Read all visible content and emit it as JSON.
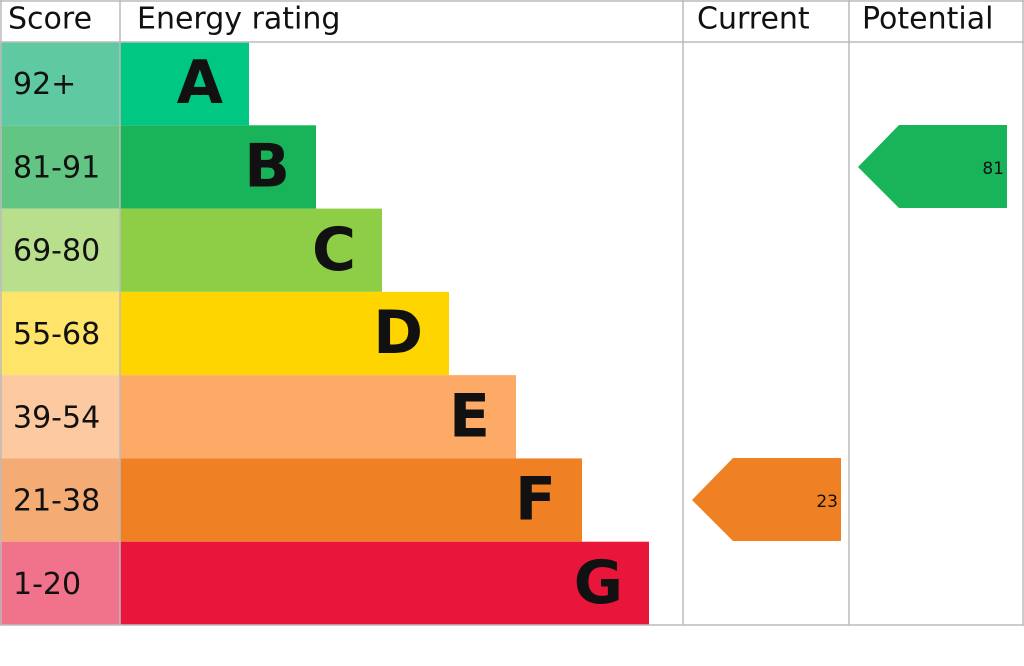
{
  "header": {
    "score": "Score",
    "rating": "Energy rating",
    "current": "Current",
    "potential": "Potential"
  },
  "rows": [
    {
      "score": "92+",
      "letter": "A"
    },
    {
      "score": "81-91",
      "letter": "B"
    },
    {
      "score": "69-80",
      "letter": "C"
    },
    {
      "score": "55-68",
      "letter": "D"
    },
    {
      "score": "39-54",
      "letter": "E"
    },
    {
      "score": "21-38",
      "letter": "F"
    },
    {
      "score": "1-20",
      "letter": "G"
    }
  ],
  "current": 23,
  "potential": 81
}
